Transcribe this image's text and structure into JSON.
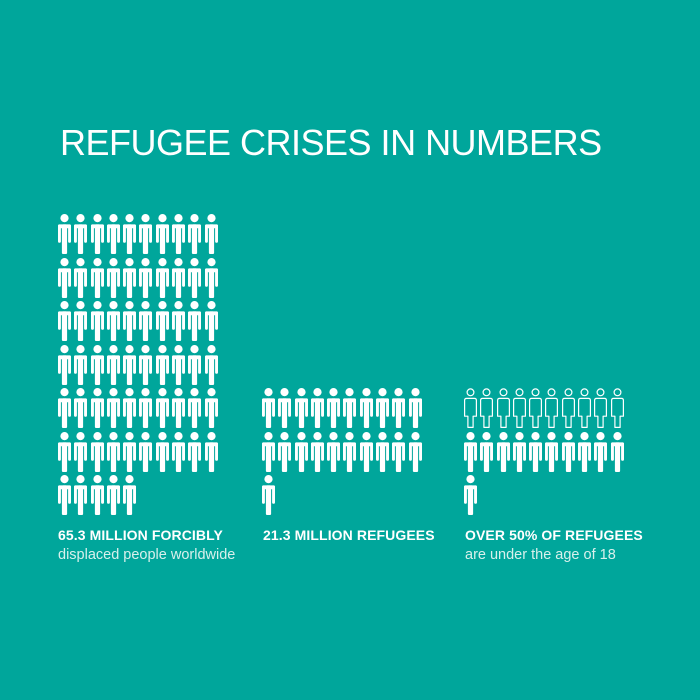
{
  "title": "REFUGEE CRISES IN NUMBERS",
  "chart_data": {
    "type": "pictogram",
    "title": "REFUGEE CRISES IN NUMBERS",
    "icon": "person",
    "icons_per_row": 10,
    "legend_position": "none",
    "groups": [
      {
        "name": "forcibly-displaced",
        "value_label": "65.3 MILLION FORCIBLY",
        "sub_label": "displaced people worldwide",
        "value_millions": 65.3,
        "icon_count": 65,
        "outline_icon_count": 0,
        "rows": [
          10,
          10,
          10,
          10,
          10,
          10,
          5
        ]
      },
      {
        "name": "refugees",
        "value_label": "21.3 MILLION REFUGEES",
        "sub_label": "",
        "value_millions": 21.3,
        "icon_count": 21,
        "outline_icon_count": 0,
        "rows": [
          10,
          10,
          1
        ]
      },
      {
        "name": "refugees-under-18",
        "value_label": "OVER 50% OF REFUGEES",
        "sub_label": "are under the age of 18",
        "icon_count": 21,
        "outline_icon_count": 10,
        "filled_icon_count": 11,
        "rows": [
          10,
          10,
          1
        ]
      }
    ],
    "colors": {
      "background": "#00a69b",
      "icon_fill": "#ffffff",
      "label_bold": "#ffffff",
      "label_secondary": "#d8f0ec"
    }
  }
}
